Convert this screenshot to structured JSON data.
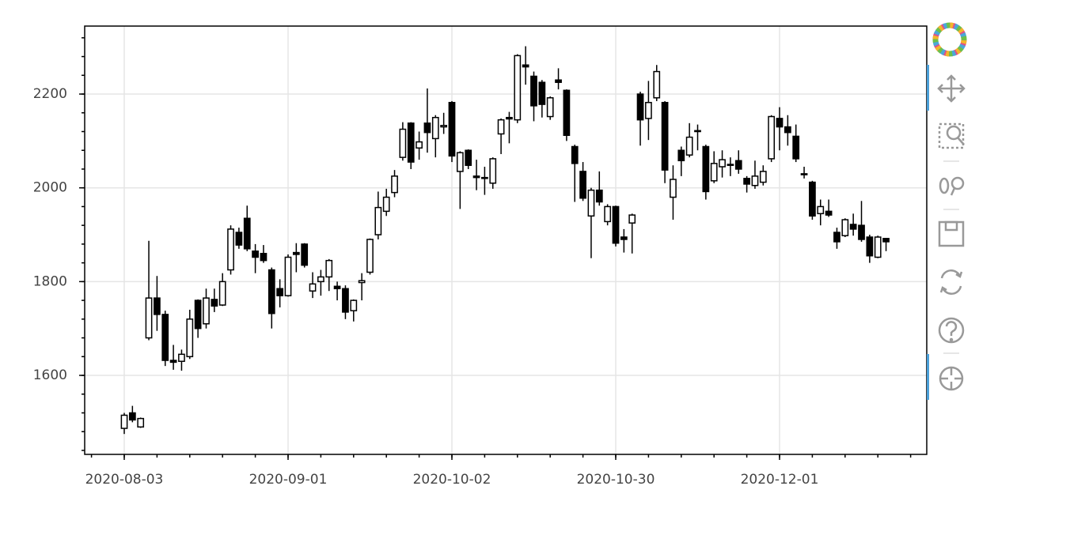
{
  "chart_data": {
    "type": "candlestick",
    "xlim": [
      -4.83,
      97.97
    ],
    "xticks": [
      {
        "value": 0,
        "label": "2020-08-03"
      },
      {
        "value": 20,
        "label": "2020-09-01"
      },
      {
        "value": 40,
        "label": "2020-10-02"
      },
      {
        "value": 60,
        "label": "2020-10-30"
      },
      {
        "value": 80,
        "label": "2020-12-01"
      }
    ],
    "ylim": [
      1431.5,
      2345
    ],
    "yticks": [
      1600,
      1800,
      2000,
      2200
    ],
    "grid": true,
    "increasing_color": "#ffffff",
    "decreasing_color": "#000000",
    "open": [
      1487,
      1520,
      1490,
      1680,
      1765,
      1730,
      1632,
      1630,
      1640,
      1760,
      1710,
      1762,
      1750,
      1825,
      1905,
      1935,
      1865,
      1860,
      1825,
      1785,
      1770,
      1862,
      1880,
      1780,
      1800,
      1810,
      1790,
      1785,
      1738,
      1798,
      1820,
      1900,
      1950,
      1990,
      2065,
      2138,
      2085,
      2138,
      2105,
      2130,
      2182,
      2035,
      2080,
      2025,
      2022,
      2010,
      2115,
      2150,
      2145,
      2262,
      2238,
      2225,
      2152,
      2230,
      2208,
      2088,
      2035,
      1940,
      1995,
      1928,
      1960,
      1895,
      1925,
      2200,
      2148,
      2192,
      2182,
      1980,
      2080,
      2070,
      2122,
      2088,
      2015,
      2045,
      2050,
      2058,
      2020,
      2005,
      2012,
      2062,
      2148,
      2130,
      2110,
      2030,
      2012,
      1945,
      1950,
      1905,
      1898,
      1922,
      1920,
      1895,
      1852,
      1892
    ],
    "high": [
      1520,
      1535,
      1510,
      1887,
      1812,
      1738,
      1665,
      1655,
      1740,
      1762,
      1785,
      1785,
      1818,
      1920,
      1915,
      1962,
      1880,
      1878,
      1830,
      1805,
      1858,
      1882,
      1882,
      1820,
      1825,
      1848,
      1800,
      1792,
      1762,
      1818,
      1892,
      1992,
      1998,
      2038,
      2140,
      2140,
      2120,
      2212,
      2155,
      2160,
      2185,
      2078,
      2082,
      2060,
      2045,
      2065,
      2148,
      2162,
      2285,
      2302,
      2248,
      2230,
      2195,
      2255,
      2210,
      2092,
      2055,
      2000,
      2035,
      1965,
      1962,
      1912,
      1945,
      2205,
      2228,
      2262,
      2185,
      2048,
      2088,
      2138,
      2135,
      2092,
      2078,
      2080,
      2065,
      2080,
      2025,
      2058,
      2048,
      2155,
      2172,
      2155,
      2135,
      2045,
      2015,
      1975,
      1975,
      1915,
      1935,
      1945,
      1972,
      1900,
      1898,
      1892
    ],
    "low": [
      1475,
      1500,
      1488,
      1675,
      1695,
      1620,
      1612,
      1610,
      1635,
      1680,
      1700,
      1735,
      1748,
      1815,
      1870,
      1865,
      1818,
      1840,
      1700,
      1745,
      1768,
      1820,
      1830,
      1765,
      1770,
      1780,
      1760,
      1720,
      1715,
      1760,
      1815,
      1890,
      1940,
      1980,
      2058,
      2040,
      2060,
      2075,
      2065,
      2115,
      2055,
      1955,
      2040,
      1995,
      1985,
      1998,
      2072,
      2095,
      2138,
      2220,
      2142,
      2150,
      2145,
      2210,
      2100,
      1970,
      1972,
      1850,
      1962,
      1920,
      1875,
      1862,
      1860,
      2090,
      2102,
      2185,
      2010,
      1932,
      2025,
      2065,
      2080,
      1975,
      2010,
      2022,
      2025,
      2030,
      1990,
      1998,
      2005,
      2055,
      2080,
      2090,
      2055,
      2020,
      1932,
      1920,
      1938,
      1870,
      1895,
      1898,
      1885,
      1840,
      1850,
      1865
    ],
    "close": [
      1515,
      1505,
      1508,
      1765,
      1730,
      1632,
      1628,
      1645,
      1720,
      1700,
      1765,
      1748,
      1800,
      1912,
      1878,
      1870,
      1852,
      1845,
      1732,
      1770,
      1852,
      1858,
      1835,
      1795,
      1810,
      1845,
      1785,
      1735,
      1760,
      1802,
      1890,
      1958,
      1980,
      2025,
      2125,
      2055,
      2098,
      2118,
      2150,
      2133,
      2068,
      2075,
      2048,
      2022,
      2020,
      2062,
      2145,
      2147,
      2282,
      2258,
      2175,
      2178,
      2192,
      2225,
      2112,
      2052,
      1978,
      1995,
      1970,
      1960,
      1882,
      1890,
      1942,
      2145,
      2182,
      2248,
      2038,
      2018,
      2058,
      2108,
      2120,
      1992,
      2052,
      2060,
      2048,
      2040,
      2008,
      2025,
      2035,
      2152,
      2130,
      2118,
      2062,
      2028,
      1940,
      1960,
      1942,
      1885,
      1932,
      1912,
      1890,
      1855,
      1895,
      1885
    ]
  }
}
